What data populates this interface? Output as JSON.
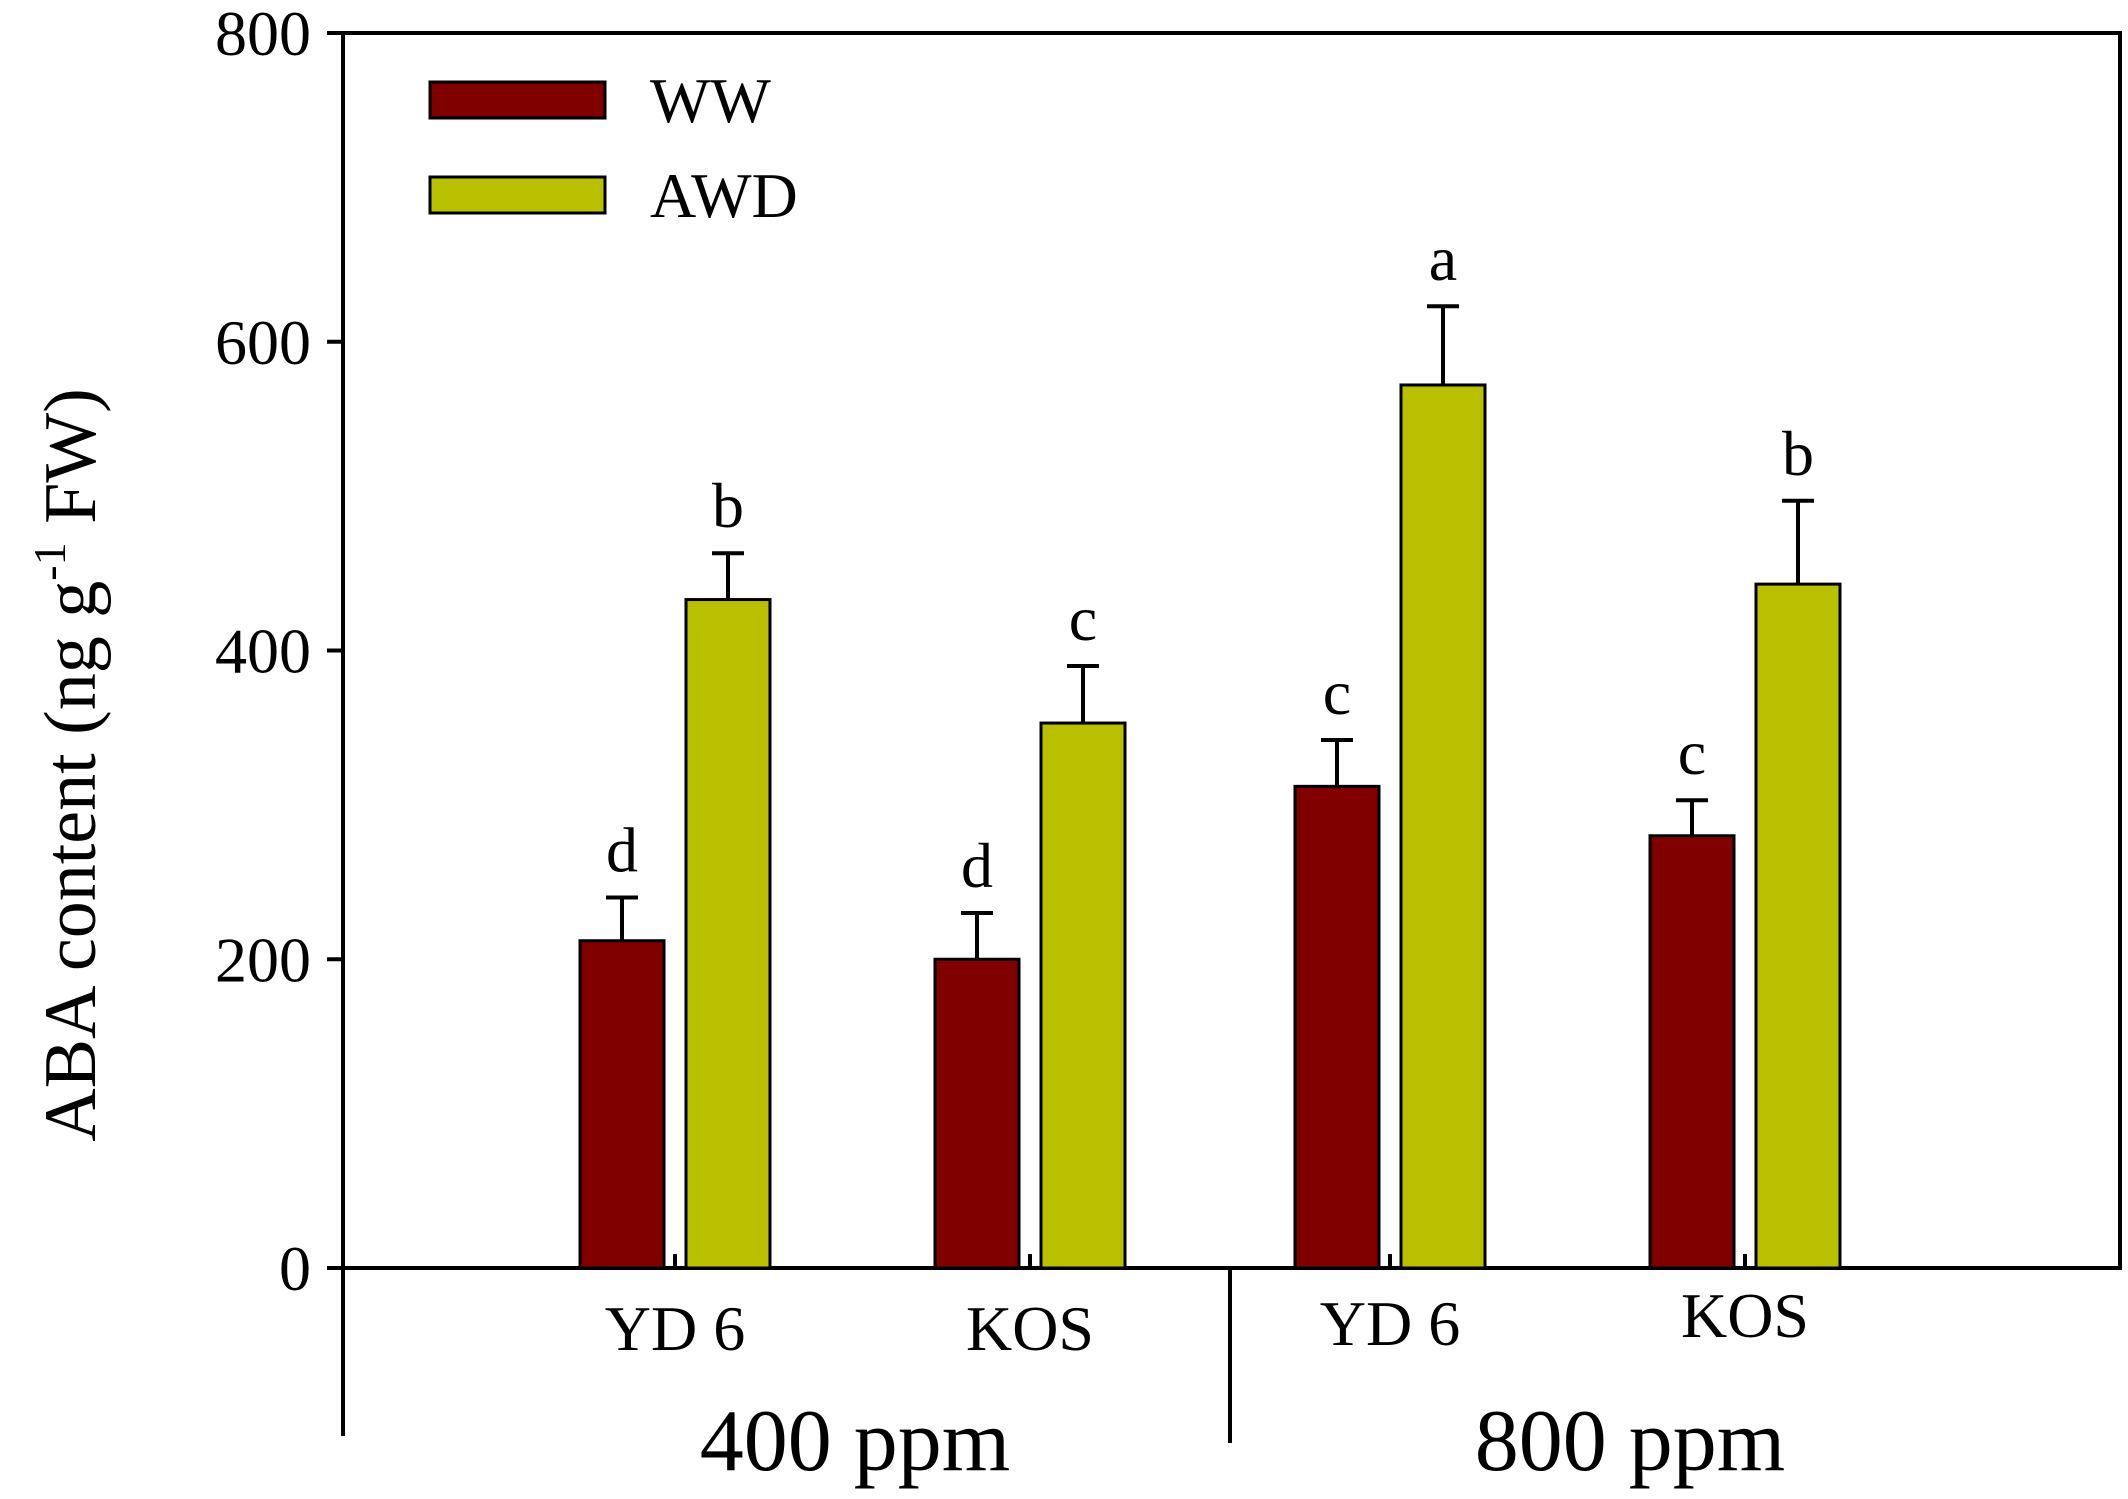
{
  "chart_data": {
    "type": "bar",
    "ylabel": "ABA content (ng g",
    "ylabel_sup": "-1",
    "ylabel_suffix": " FW)",
    "ylim": [
      0,
      800
    ],
    "yticks": [
      "0",
      "200",
      "400",
      "600",
      "800"
    ],
    "grid": false,
    "legend_placement": "top-left",
    "groups": [
      {
        "label": "400 ppm",
        "categories": [
          "YD 6",
          "KOS"
        ]
      },
      {
        "label": "800 ppm",
        "categories": [
          "YD 6",
          "KOS"
        ]
      }
    ],
    "categories": [
      "YD 6",
      "KOS",
      "YD 6",
      "KOS"
    ],
    "series": [
      {
        "name": "WW",
        "color": "#800000",
        "values": [
          212,
          200,
          312,
          280
        ],
        "errors": [
          28,
          30,
          30,
          23
        ],
        "letters": [
          "d",
          "d",
          "c",
          "c"
        ]
      },
      {
        "name": "AWD",
        "color": "#b8c000",
        "values": [
          433,
          353,
          572,
          443
        ],
        "errors": [
          30,
          37,
          51,
          54
        ],
        "letters": [
          "b",
          "c",
          "a",
          "b"
        ]
      }
    ]
  }
}
